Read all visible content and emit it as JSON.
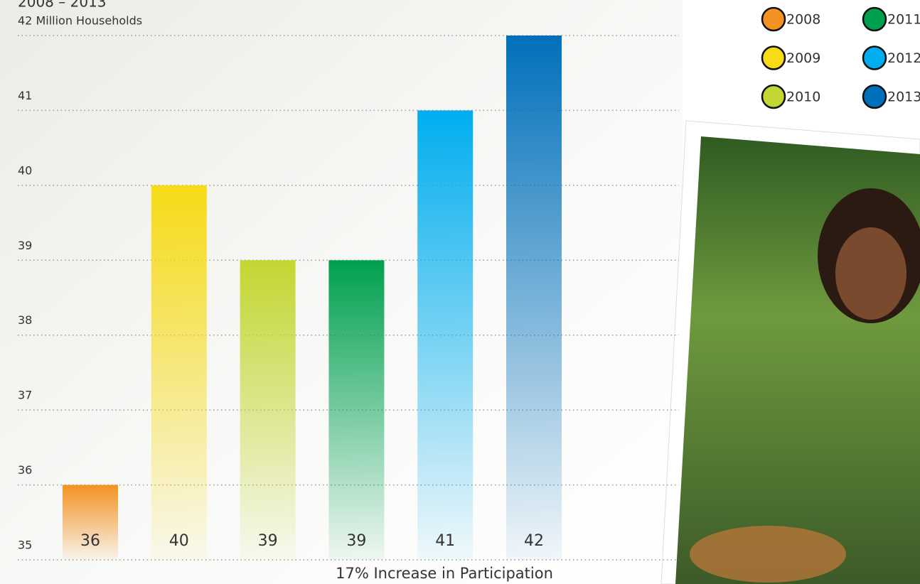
{
  "chart_data": {
    "type": "bar",
    "subtitle": "2008 – 2013",
    "categories": [
      "2008",
      "2009",
      "2010",
      "2011",
      "2012",
      "2013"
    ],
    "values": [
      36,
      40,
      39,
      39,
      41,
      42
    ],
    "colors": [
      "#f39221",
      "#f6db16",
      "#c3d631",
      "#00a04f",
      "#00aeef",
      "#0070bb"
    ],
    "ylim": [
      35,
      42
    ],
    "yticks": [
      35,
      36,
      37,
      38,
      39,
      40,
      41,
      {
        "value": 42,
        "label": "42 Million Households"
      }
    ],
    "grid": true,
    "annotation": "17% Increase in Participation"
  }
}
